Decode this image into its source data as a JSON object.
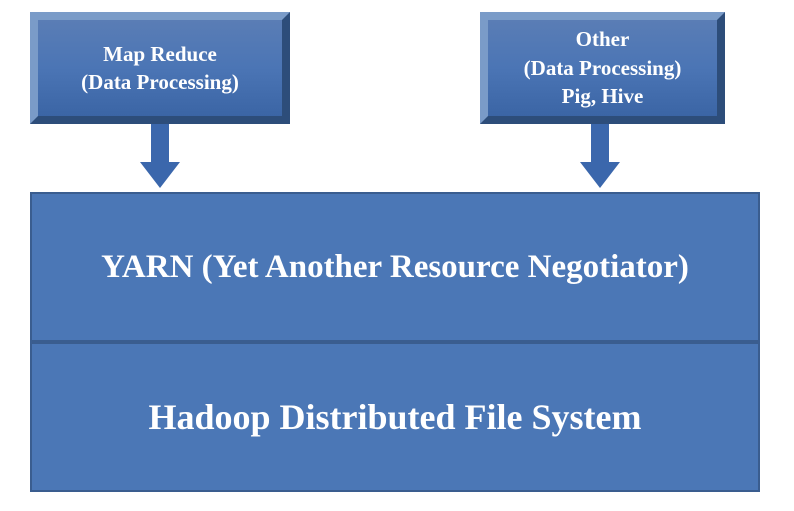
{
  "type": "diagram",
  "background_color": "#ffffff",
  "box_fill": "#4b77b6",
  "box_border": "#3a5d8f",
  "bevel_light": "#7a9bc8",
  "bevel_dark": "#2d4d7a",
  "arrow_color": "#3b67ac",
  "text_color": "#ffffff",
  "font_family": "Times New Roman",
  "top_boxes": [
    {
      "id": "mapreduce",
      "lines": [
        "Map Reduce",
        "(Data Processing)"
      ],
      "fontsize": 21
    },
    {
      "id": "other",
      "lines": [
        "Other",
        "(Data Processing)",
        "Pig, Hive"
      ],
      "fontsize": 21
    }
  ],
  "stack": [
    {
      "id": "yarn",
      "label": "YARN (Yet Another  Resource Negotiator)",
      "fontsize": 33
    },
    {
      "id": "hdfs",
      "label": "Hadoop Distributed File System",
      "fontsize": 36
    }
  ]
}
